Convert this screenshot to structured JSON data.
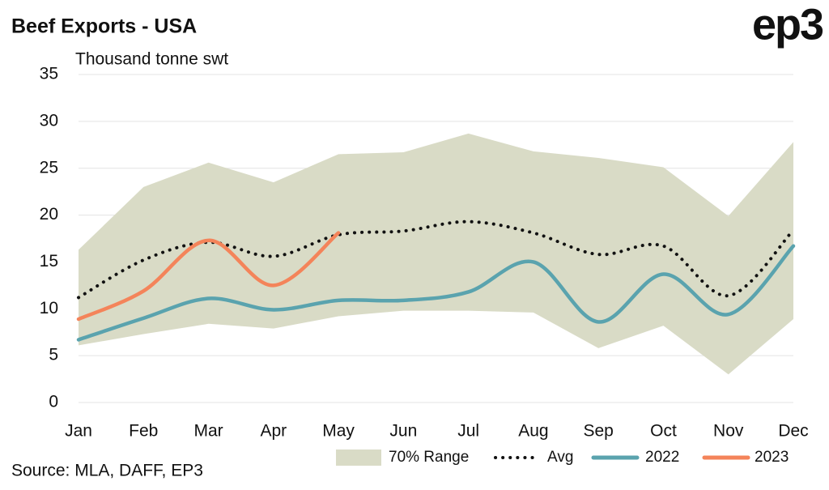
{
  "chart_data": {
    "type": "line",
    "title": "Beef Exports - USA",
    "subtitle": "Thousand tonne swt",
    "source": "Source: MLA, DAFF, EP3",
    "logo": "ep3",
    "categories": [
      "Jan",
      "Feb",
      "Mar",
      "Apr",
      "May",
      "Jun",
      "Jul",
      "Aug",
      "Sep",
      "Oct",
      "Nov",
      "Dec"
    ],
    "ylim": [
      0,
      35
    ],
    "yticks": [
      0,
      5,
      10,
      15,
      20,
      25,
      30,
      35
    ],
    "grid": true,
    "legend": "bottom",
    "band": {
      "name": "70% Range",
      "color": "#d9dbc6",
      "high": [
        16.3,
        23,
        25.6,
        23.5,
        26.5,
        26.7,
        28.7,
        26.8,
        26.1,
        25.1,
        19.9,
        27.8
      ],
      "low": [
        6.1,
        7.3,
        8.4,
        7.9,
        9.2,
        9.8,
        9.8,
        9.6,
        5.8,
        8.2,
        3.0,
        8.9
      ]
    },
    "series": [
      {
        "name": "Avg",
        "color": "#111111",
        "dotted": true,
        "values": [
          11.2,
          15.2,
          17.1,
          15.6,
          17.9,
          18.3,
          19.3,
          18.1,
          15.8,
          16.7,
          11.4,
          18.4
        ]
      },
      {
        "name": "2022",
        "color": "#5aa3ae",
        "values": [
          6.7,
          9.0,
          11.1,
          9.9,
          10.9,
          10.9,
          11.8,
          15.0,
          8.6,
          13.7,
          9.4,
          16.7
        ]
      },
      {
        "name": "2023",
        "color": "#f4845a",
        "values": [
          8.9,
          11.9,
          17.3,
          12.5,
          18.1,
          null,
          null,
          null,
          null,
          null,
          null,
          null
        ]
      }
    ]
  }
}
